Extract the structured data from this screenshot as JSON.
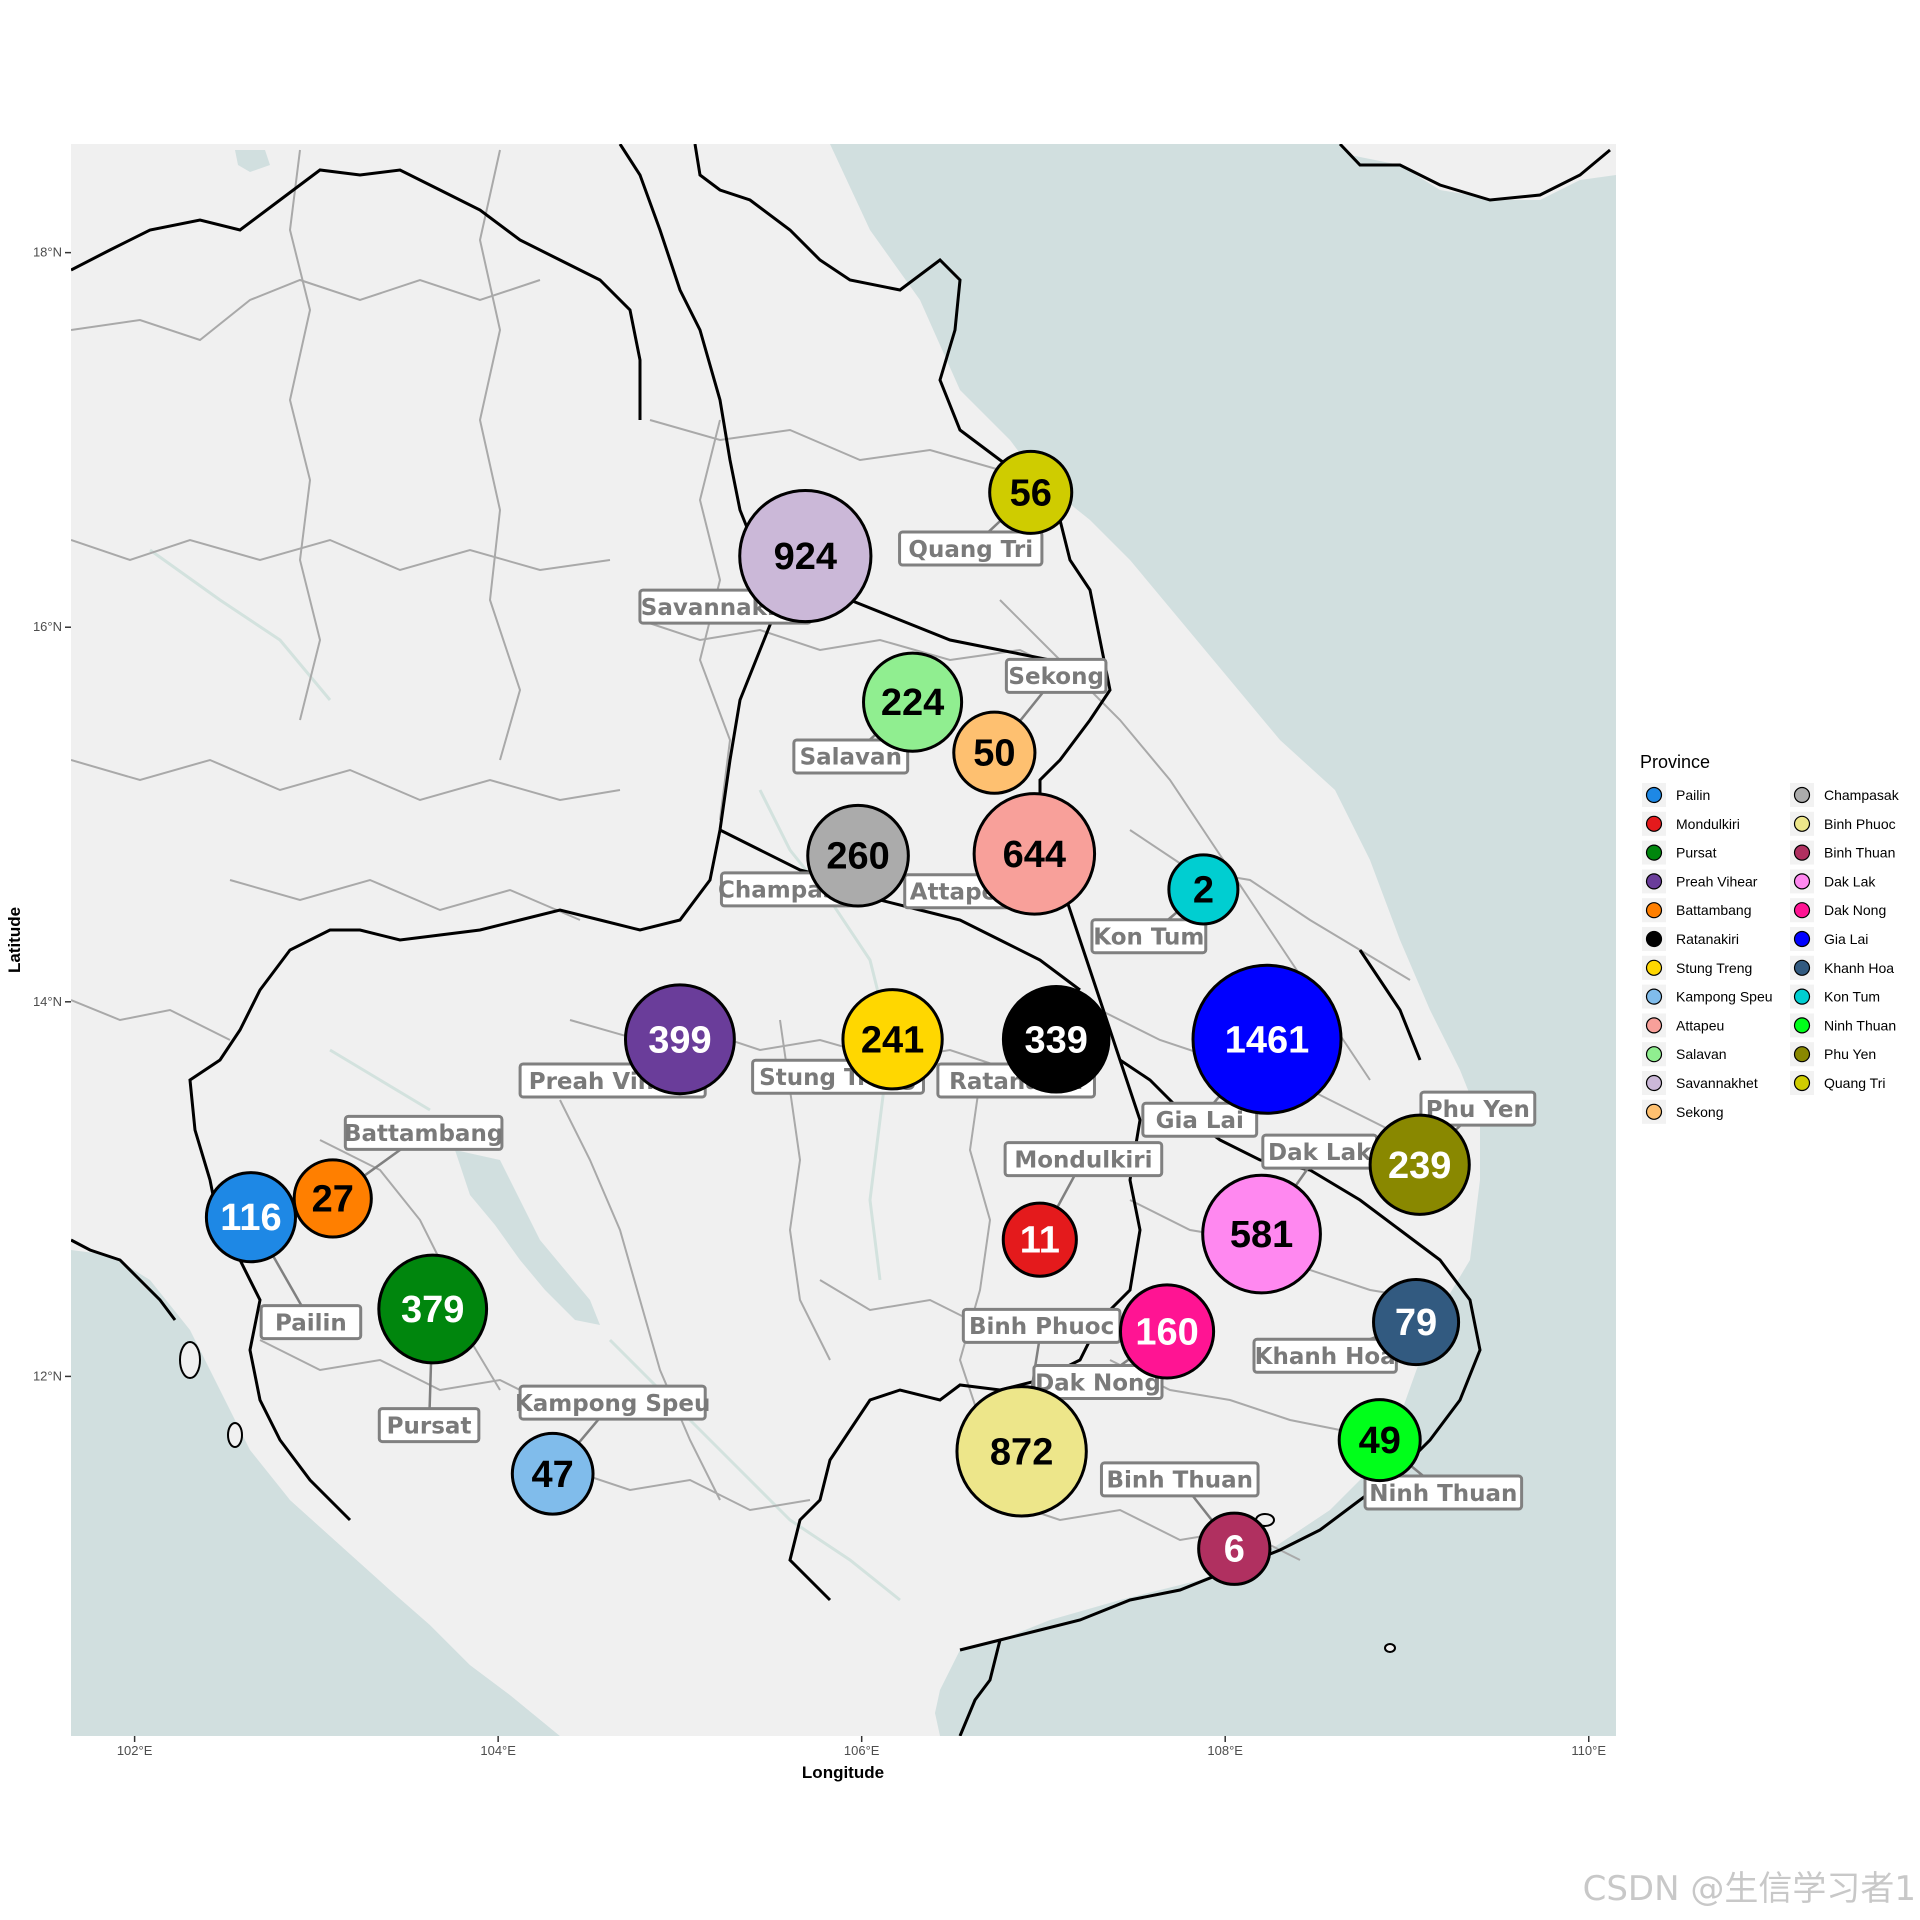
{
  "axes": {
    "x_label": "Longitude",
    "y_label": "Latitude",
    "x_ticks": [
      {
        "value": 102,
        "label": "102°E"
      },
      {
        "value": 104,
        "label": "104°E"
      },
      {
        "value": 106,
        "label": "106°E"
      },
      {
        "value": 108,
        "label": "108°E"
      },
      {
        "value": 110,
        "label": "110°E"
      }
    ],
    "y_ticks": [
      {
        "value": 18,
        "label": "18°N"
      },
      {
        "value": 16,
        "label": "16°N"
      },
      {
        "value": 14,
        "label": "14°N"
      },
      {
        "value": 12,
        "label": "12°N"
      }
    ],
    "xlim": [
      101.65,
      110.15
    ],
    "ylim": [
      10.08,
      18.58
    ]
  },
  "legend": {
    "title": "Province",
    "placement": "right",
    "columns": 2
  },
  "chart_data": {
    "type": "scatter",
    "size_encodes": "value",
    "points": [
      {
        "name": "Pailin",
        "lon": 102.64,
        "lat": 12.85,
        "value": 116,
        "color": "#1E88E5",
        "text_color": "#ffffff",
        "label_lon": 102.97,
        "label_lat": 12.29
      },
      {
        "name": "Mondulkiri",
        "lon": 106.98,
        "lat": 12.73,
        "value": 11,
        "color": "#E41A1C",
        "text_color": "#ffffff",
        "label_lon": 107.22,
        "label_lat": 13.16
      },
      {
        "name": "Pursat",
        "lon": 103.64,
        "lat": 12.36,
        "value": 379,
        "color": "#00860D",
        "text_color": "#ffffff",
        "label_lon": 103.62,
        "label_lat": 11.74
      },
      {
        "name": "Preah Vihear",
        "lon": 105.0,
        "lat": 13.8,
        "value": 399,
        "color": "#6A3D9A",
        "text_color": "#ffffff",
        "label_lon": 104.63,
        "label_lat": 13.58
      },
      {
        "name": "Battambang",
        "lon": 103.09,
        "lat": 12.95,
        "value": 27,
        "color": "#FF7F00",
        "text_color": "#000000",
        "label_lon": 103.59,
        "label_lat": 13.3
      },
      {
        "name": "Ratanakiri",
        "lon": 107.07,
        "lat": 13.8,
        "value": 339,
        "color": "#000000",
        "text_color": "#ffffff",
        "label_lon": 106.85,
        "label_lat": 13.58
      },
      {
        "name": "Stung Treng",
        "lon": 106.17,
        "lat": 13.8,
        "value": 241,
        "color": "#FFD700",
        "text_color": "#000000",
        "label_lon": 105.87,
        "label_lat": 13.6
      },
      {
        "name": "Kampong Speu",
        "lon": 104.3,
        "lat": 11.48,
        "value": 47,
        "color": "#80BCEB",
        "text_color": "#000000",
        "label_lon": 104.63,
        "label_lat": 11.86
      },
      {
        "name": "Attapeu",
        "lon": 106.95,
        "lat": 14.79,
        "value": 644,
        "color": "#F8A09A",
        "text_color": "#000000",
        "label_lon": 106.55,
        "label_lat": 14.59
      },
      {
        "name": "Salavan",
        "lon": 106.28,
        "lat": 15.6,
        "value": 224,
        "color": "#90EE90",
        "text_color": "#000000",
        "label_lon": 105.94,
        "label_lat": 15.31
      },
      {
        "name": "Savannakhet",
        "lon": 105.69,
        "lat": 16.38,
        "value": 924,
        "color": "#CBB8D8",
        "text_color": "#000000",
        "label_lon": 105.25,
        "label_lat": 16.11
      },
      {
        "name": "Sekong",
        "lon": 106.73,
        "lat": 15.33,
        "value": 50,
        "color": "#FEC070",
        "text_color": "#000000",
        "label_lon": 107.07,
        "label_lat": 15.74
      },
      {
        "name": "Champasak",
        "lon": 105.98,
        "lat": 14.78,
        "value": 260,
        "color": "#ABABAB",
        "text_color": "#000000",
        "label_lon": 105.62,
        "label_lat": 14.6
      },
      {
        "name": "Binh Phuoc",
        "lon": 106.88,
        "lat": 11.6,
        "value": 872,
        "color": "#EDE68A",
        "text_color": "#000000",
        "label_lon": 106.99,
        "label_lat": 12.27
      },
      {
        "name": "Binh Thuan",
        "lon": 108.05,
        "lat": 11.08,
        "value": 6,
        "color": "#B03060",
        "text_color": "#ffffff",
        "label_lon": 107.75,
        "label_lat": 11.45
      },
      {
        "name": "Dak Lak",
        "lon": 108.2,
        "lat": 12.76,
        "value": 581,
        "color": "#FF88F0",
        "text_color": "#000000",
        "label_lon": 108.52,
        "label_lat": 13.2
      },
      {
        "name": "Dak Nong",
        "lon": 107.68,
        "lat": 12.24,
        "value": 160,
        "color": "#FF1493",
        "text_color": "#ffffff",
        "label_lon": 107.3,
        "label_lat": 11.97
      },
      {
        "name": "Gia Lai",
        "lon": 108.23,
        "lat": 13.8,
        "value": 1461,
        "color": "#0000FF",
        "text_color": "#ffffff",
        "label_lon": 107.86,
        "label_lat": 13.37
      },
      {
        "name": "Khanh Hoa",
        "lon": 109.05,
        "lat": 12.29,
        "value": 79,
        "color": "#325A80",
        "text_color": "#ffffff",
        "label_lon": 108.55,
        "label_lat": 12.11
      },
      {
        "name": "Kon Tum",
        "lon": 107.88,
        "lat": 14.6,
        "value": 2,
        "color": "#00CED1",
        "text_color": "#000000",
        "label_lon": 107.58,
        "label_lat": 14.35
      },
      {
        "name": "Ninh Thuan",
        "lon": 108.85,
        "lat": 11.66,
        "value": 49,
        "color": "#00FF1A",
        "text_color": "#000000",
        "label_lon": 109.2,
        "label_lat": 11.38
      },
      {
        "name": "Phu Yen",
        "lon": 109.07,
        "lat": 13.13,
        "value": 239,
        "color": "#898800",
        "text_color": "#ffffff",
        "label_lon": 109.39,
        "label_lat": 13.43
      },
      {
        "name": "Quang Tri",
        "lon": 106.93,
        "lat": 16.72,
        "value": 56,
        "color": "#CFCC00",
        "text_color": "#000000",
        "label_lon": 106.6,
        "label_lat": 16.42
      }
    ]
  },
  "legend_items": [
    {
      "name": "Pailin",
      "color": "#1E88E5"
    },
    {
      "name": "Mondulkiri",
      "color": "#E41A1C"
    },
    {
      "name": "Pursat",
      "color": "#00860D"
    },
    {
      "name": "Preah Vihear",
      "color": "#6A3D9A"
    },
    {
      "name": "Battambang",
      "color": "#FF7F00"
    },
    {
      "name": "Ratanakiri",
      "color": "#000000"
    },
    {
      "name": "Stung Treng",
      "color": "#FFD700"
    },
    {
      "name": "Kampong Speu",
      "color": "#80BCEB"
    },
    {
      "name": "Attapeu",
      "color": "#F8A09A"
    },
    {
      "name": "Salavan",
      "color": "#90EE90"
    },
    {
      "name": "Savannakhet",
      "color": "#CBB8D8"
    },
    {
      "name": "Sekong",
      "color": "#FEC070"
    },
    {
      "name": "Champasak",
      "color": "#ABABAB"
    },
    {
      "name": "Binh Phuoc",
      "color": "#EDE68A"
    },
    {
      "name": "Binh Thuan",
      "color": "#B03060"
    },
    {
      "name": "Dak Lak",
      "color": "#FF88F0"
    },
    {
      "name": "Dak Nong",
      "color": "#FF1493"
    },
    {
      "name": "Gia Lai",
      "color": "#0000FF"
    },
    {
      "name": "Khanh Hoa",
      "color": "#325A80"
    },
    {
      "name": "Kon Tum",
      "color": "#00CED1"
    },
    {
      "name": "Ninh Thuan",
      "color": "#00FF1A"
    },
    {
      "name": "Phu Yen",
      "color": "#898800"
    },
    {
      "name": "Quang Tri",
      "color": "#CFCC00"
    }
  ],
  "colors": {
    "sea": "#D1DFDF",
    "land": "#F0F0F0",
    "province_border": "#A9A9A9",
    "country_border": "#000000",
    "river": "#D3E2DE",
    "label_text": "#7A7A7A",
    "label_border": "#808080"
  },
  "watermark": "CSDN @生信学习者1"
}
